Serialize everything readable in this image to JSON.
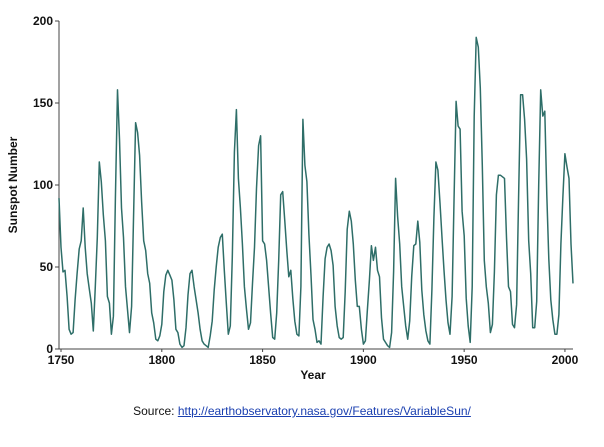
{
  "chart_data": {
    "type": "line",
    "title": "",
    "xlabel": "Year",
    "ylabel": "Sunspot Number",
    "xlim": [
      1749,
      2004
    ],
    "ylim": [
      0,
      200
    ],
    "x_ticks": [
      1750,
      1800,
      1850,
      1900,
      1950,
      2000
    ],
    "x_tick_labels": [
      "1750",
      "1800",
      "1850",
      "1900",
      "1950",
      "2000"
    ],
    "y_ticks": [
      0,
      50,
      100,
      150,
      200
    ],
    "y_tick_labels": [
      "0",
      "50",
      "100",
      "150",
      "200"
    ],
    "grid": false,
    "line_color": "#2e6e68",
    "series": [
      {
        "x": [
          1749,
          1750,
          1751,
          1752,
          1753,
          1754,
          1755,
          1756,
          1757,
          1758,
          1759,
          1760,
          1761,
          1762,
          1763,
          1764,
          1765,
          1766,
          1767,
          1768,
          1769,
          1770,
          1771,
          1772,
          1773,
          1774,
          1775,
          1776,
          1777,
          1778,
          1779,
          1780,
          1781,
          1782,
          1783,
          1784,
          1785,
          1786,
          1787,
          1788,
          1789,
          1790,
          1791,
          1792,
          1793,
          1794,
          1795,
          1796,
          1797,
          1798,
          1799,
          1800,
          1801,
          1802,
          1803,
          1804,
          1805,
          1806,
          1807,
          1808,
          1809,
          1810,
          1811,
          1812,
          1813,
          1814,
          1815,
          1816,
          1817,
          1818,
          1819,
          1820,
          1821,
          1822,
          1823,
          1824,
          1825,
          1826,
          1827,
          1828,
          1829,
          1830,
          1831,
          1832,
          1833,
          1834,
          1835,
          1836,
          1837,
          1838,
          1839,
          1840,
          1841,
          1842,
          1843,
          1844,
          1845,
          1846,
          1847,
          1848,
          1849,
          1850,
          1851,
          1852,
          1853,
          1854,
          1855,
          1856,
          1857,
          1858,
          1859,
          1860,
          1861,
          1862,
          1863,
          1864,
          1865,
          1866,
          1867,
          1868,
          1869,
          1870,
          1871,
          1872,
          1873,
          1874,
          1875,
          1876,
          1877,
          1878,
          1879,
          1880,
          1881,
          1882,
          1883,
          1884,
          1885,
          1886,
          1887,
          1888,
          1889,
          1890,
          1891,
          1892,
          1893,
          1894,
          1895,
          1896,
          1897,
          1898,
          1899,
          1900,
          1901,
          1902,
          1903,
          1904,
          1905,
          1906,
          1907,
          1908,
          1909,
          1910,
          1911,
          1912,
          1913,
          1914,
          1915,
          1916,
          1917,
          1918,
          1919,
          1920,
          1921,
          1922,
          1923,
          1924,
          1925,
          1926,
          1927,
          1928,
          1929,
          1930,
          1931,
          1932,
          1933,
          1934,
          1935,
          1936,
          1937,
          1938,
          1939,
          1940,
          1941,
          1942,
          1943,
          1944,
          1945,
          1946,
          1947,
          1948,
          1949,
          1950,
          1951,
          1952,
          1953,
          1954,
          1955,
          1956,
          1957,
          1958,
          1959,
          1960,
          1961,
          1962,
          1963,
          1964,
          1965,
          1966,
          1967,
          1968,
          1969,
          1970,
          1971,
          1972,
          1973,
          1974,
          1975,
          1976,
          1977,
          1978,
          1979,
          1980,
          1981,
          1982,
          1983,
          1984,
          1985,
          1986,
          1987,
          1988,
          1989,
          1990,
          1991,
          1992,
          1993,
          1994,
          1995,
          1996,
          1997,
          1998,
          1999,
          2000,
          2001,
          2002,
          2003,
          2004
        ],
        "y": [
          92,
          62,
          47,
          48,
          32,
          12,
          9,
          10,
          30,
          46,
          61,
          66,
          86,
          62,
          46,
          37,
          28,
          11,
          38,
          68,
          114,
          102,
          82,
          66,
          32,
          28,
          9,
          20,
          92,
          158,
          128,
          86,
          68,
          38,
          24,
          10,
          26,
          82,
          138,
          132,
          118,
          90,
          66,
          60,
          46,
          40,
          22,
          16,
          6,
          5,
          8,
          15,
          35,
          45,
          48,
          45,
          42,
          30,
          12,
          10,
          3,
          1,
          2,
          13,
          33,
          46,
          48,
          38,
          30,
          22,
          12,
          5,
          3,
          2,
          1,
          8,
          17,
          36,
          50,
          62,
          68,
          70,
          48,
          28,
          9,
          14,
          56,
          120,
          146,
          104,
          86,
          64,
          38,
          24,
          12,
          16,
          40,
          62,
          98,
          124,
          130,
          66,
          64,
          54,
          38,
          22,
          7,
          6,
          22,
          54,
          94,
          96,
          78,
          60,
          44,
          48,
          31,
          17,
          9,
          8,
          38,
          140,
          112,
          102,
          70,
          45,
          18,
          12,
          4,
          5,
          3,
          32,
          55,
          62,
          64,
          60,
          51,
          26,
          14,
          7,
          6,
          7,
          35,
          73,
          84,
          78,
          64,
          42,
          26,
          26,
          12,
          3,
          5,
          24,
          42,
          63,
          54,
          62,
          48,
          44,
          19,
          6,
          4,
          2,
          1,
          10,
          47,
          104,
          81,
          64,
          38,
          26,
          14,
          6,
          17,
          44,
          63,
          64,
          78,
          65,
          36,
          21,
          11,
          5,
          3,
          36,
          80,
          114,
          109,
          89,
          68,
          48,
          30,
          16,
          9,
          32,
          93,
          151,
          136,
          134,
          84,
          69,
          31,
          14,
          4,
          38,
          142,
          190,
          184,
          159,
          112,
          54,
          38,
          28,
          10,
          15,
          47,
          94,
          106,
          106,
          105,
          104,
          68,
          38,
          35,
          15,
          13,
          27,
          93,
          155,
          155,
          140,
          116,
          66,
          46,
          13,
          13,
          29,
          100,
          158,
          142,
          145,
          94,
          55,
          30,
          18,
          9,
          9,
          21,
          64,
          93,
          119,
          111,
          104,
          64,
          40
        ]
      }
    ]
  },
  "source": {
    "label": "Source: ",
    "link_text": "http://earthobservatory.nasa.gov/Features/VariableSun/"
  }
}
